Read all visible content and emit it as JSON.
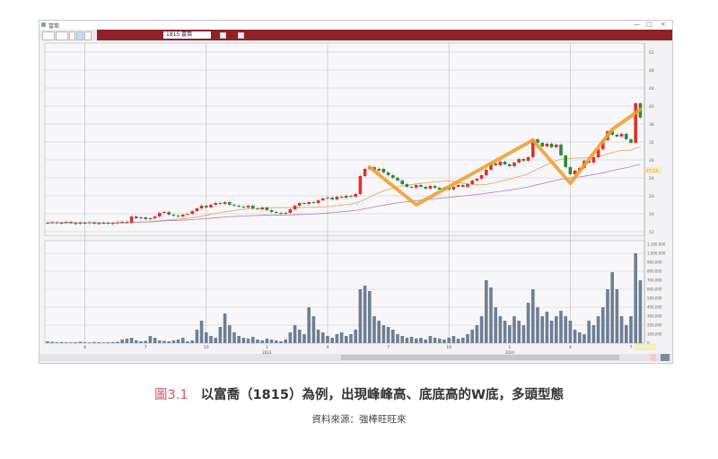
{
  "window": {
    "title": "富喬",
    "minimize": "—",
    "maximize": "□",
    "close": "×"
  },
  "toolbar": {
    "symbol_dropdown": "1815 富喬"
  },
  "price_label_tag": "27.23",
  "colors": {
    "up": "#e0302a",
    "down": "#2e8b3a",
    "ma_short": "#e8a24a",
    "ma_long": "#b07ac8",
    "volume": "#6d7f94",
    "annotation": "#f0a030",
    "toolbar": "#8e2226",
    "caption_accent": "#d2566e"
  },
  "chart_data": {
    "type": "candlestick",
    "period": "weekly",
    "x_tick_labels": [
      {
        "index": 8,
        "label": "4"
      },
      {
        "index": 21,
        "label": "7"
      },
      {
        "index": 34,
        "label": "10"
      },
      {
        "index": 47,
        "label": "1",
        "year": "2023"
      },
      {
        "index": 60,
        "label": "4"
      },
      {
        "index": 73,
        "label": "7"
      },
      {
        "index": 86,
        "label": "10"
      },
      {
        "index": 99,
        "label": "1",
        "year": "2024"
      },
      {
        "index": 112,
        "label": "4"
      },
      {
        "index": 125,
        "label": "7"
      }
    ],
    "price_axis": {
      "ylim": [
        11.2,
        54
      ],
      "ticks": [
        52,
        48,
        44,
        40,
        36,
        32,
        28,
        24,
        20,
        16,
        12
      ]
    },
    "volume_axis": {
      "ylim": [
        0,
        1150000
      ],
      "ticks": [
        "1,100,000",
        "1,000,000",
        "900,000",
        "800,000",
        "700,000",
        "600,000",
        "500,000",
        "400,000",
        "300,000",
        "200,000",
        "100,000",
        "0"
      ]
    },
    "close": [
      14.0,
      14.1,
      13.9,
      14.0,
      14.2,
      13.9,
      13.8,
      14.0,
      13.9,
      14.1,
      13.8,
      13.9,
      14.0,
      13.8,
      13.9,
      14.1,
      14.2,
      14.0,
      15.4,
      15.0,
      15.2,
      14.8,
      15.0,
      15.4,
      16.2,
      16.4,
      15.8,
      15.6,
      15.4,
      15.8,
      16.0,
      16.6,
      17.2,
      17.8,
      17.4,
      18.0,
      18.4,
      18.2,
      18.6,
      18.0,
      17.8,
      17.6,
      17.4,
      17.8,
      17.2,
      17.0,
      17.4,
      16.8,
      16.4,
      16.2,
      16.0,
      16.2,
      17.0,
      17.8,
      18.4,
      18.2,
      18.6,
      18.4,
      19.0,
      19.4,
      19.6,
      19.2,
      19.8,
      19.6,
      20.0,
      19.8,
      20.4,
      24.4,
      26.0,
      26.4,
      25.6,
      26.0,
      25.2,
      24.6,
      24.0,
      23.4,
      22.6,
      22.0,
      21.8,
      22.4,
      22.0,
      21.6,
      22.2,
      21.8,
      21.4,
      21.8,
      21.4,
      22.0,
      22.4,
      22.0,
      22.6,
      23.4,
      23.8,
      24.6,
      25.8,
      27.2,
      26.8,
      27.6,
      27.0,
      26.6,
      27.4,
      28.2,
      27.8,
      28.6,
      32.6,
      31.8,
      31.0,
      31.6,
      30.8,
      31.4,
      29.0,
      26.4,
      24.8,
      25.6,
      26.2,
      27.8,
      27.4,
      28.6,
      30.4,
      32.4,
      34.4,
      33.6,
      33.2,
      33.8,
      32.6,
      31.8,
      40.6,
      37.4
    ],
    "volume": [
      20000,
      15000,
      10000,
      12000,
      10000,
      8000,
      10000,
      15000,
      10000,
      8000,
      12000,
      10000,
      8000,
      10000,
      12000,
      15000,
      40000,
      50000,
      60000,
      30000,
      20000,
      25000,
      80000,
      60000,
      30000,
      25000,
      20000,
      30000,
      40000,
      60000,
      20000,
      30000,
      150000,
      250000,
      120000,
      80000,
      60000,
      180000,
      330000,
      200000,
      120000,
      80000,
      60000,
      50000,
      70000,
      40000,
      30000,
      50000,
      40000,
      30000,
      20000,
      40000,
      120000,
      200000,
      150000,
      100000,
      400000,
      300000,
      150000,
      120000,
      80000,
      60000,
      100000,
      120000,
      80000,
      100000,
      150000,
      600000,
      640000,
      580000,
      300000,
      250000,
      200000,
      180000,
      150000,
      100000,
      80000,
      60000,
      70000,
      50000,
      60000,
      40000,
      80000,
      60000,
      50000,
      40000,
      60000,
      80000,
      50000,
      60000,
      100000,
      150000,
      200000,
      300000,
      700000,
      620000,
      400000,
      300000,
      250000,
      200000,
      300000,
      250000,
      200000,
      450000,
      600000,
      400000,
      300000,
      350000,
      250000,
      300000,
      360000,
      300000,
      250000,
      150000,
      120000,
      100000,
      250000,
      200000,
      300000,
      400000,
      600000,
      790000,
      600000,
      300000,
      200000,
      300000,
      1000000,
      700000
    ],
    "moving_averages": [
      {
        "period": 20,
        "color": "#e8a24a"
      },
      {
        "period": 60,
        "color": "#b07ac8"
      }
    ],
    "annotation_w_pattern": [
      {
        "index": 69,
        "price": 26.4
      },
      {
        "index": 79,
        "price": 18.0
      },
      {
        "index": 104,
        "price": 32.4
      },
      {
        "index": 112,
        "price": 22.8
      },
      {
        "index": 121,
        "price": 34.8
      },
      {
        "index": 127,
        "price": 39.2
      }
    ],
    "grid": true
  },
  "caption": {
    "figure_number": "圖3.1",
    "text": "以富喬（1815）為例，出現峰峰高、底底高的W底，多頭型態"
  },
  "source": "資料來源：強棒旺旺來"
}
